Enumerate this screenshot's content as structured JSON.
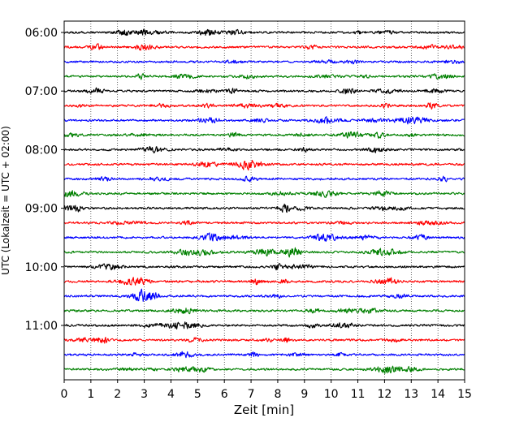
{
  "chart_data": {
    "type": "line",
    "xlabel": "Zeit  [min]",
    "ylabel": "UTC (Lokalzeit = UTC + 02:00)",
    "xlim": [
      0,
      15
    ],
    "x_ticks": [
      "0",
      "1",
      "2",
      "3",
      "4",
      "5",
      "6",
      "7",
      "8",
      "9",
      "10",
      "11",
      "12",
      "13",
      "14",
      "15"
    ],
    "grid": "vertical dotted",
    "row_interval_minutes": 15,
    "row_start": "06:00",
    "row_end": "11:45",
    "y_ticks": [
      {
        "label": "06:00",
        "row": 0
      },
      {
        "label": "07:00",
        "row": 4
      },
      {
        "label": "08:00",
        "row": 8
      },
      {
        "label": "09:00",
        "row": 12
      },
      {
        "label": "10:00",
        "row": 16
      },
      {
        "label": "11:00",
        "row": 20
      }
    ],
    "trace_colors": [
      "#000000",
      "#ff0000",
      "#0000ff",
      "#008000"
    ],
    "traces": [
      {
        "start": "06:00",
        "color": "#000000"
      },
      {
        "start": "06:15",
        "color": "#ff0000"
      },
      {
        "start": "06:30",
        "color": "#0000ff"
      },
      {
        "start": "06:45",
        "color": "#008000"
      },
      {
        "start": "07:00",
        "color": "#000000"
      },
      {
        "start": "07:15",
        "color": "#ff0000"
      },
      {
        "start": "07:30",
        "color": "#0000ff"
      },
      {
        "start": "07:45",
        "color": "#008000"
      },
      {
        "start": "08:00",
        "color": "#000000"
      },
      {
        "start": "08:15",
        "color": "#ff0000"
      },
      {
        "start": "08:30",
        "color": "#0000ff"
      },
      {
        "start": "08:45",
        "color": "#008000"
      },
      {
        "start": "09:00",
        "color": "#000000"
      },
      {
        "start": "09:15",
        "color": "#ff0000"
      },
      {
        "start": "09:30",
        "color": "#0000ff"
      },
      {
        "start": "09:45",
        "color": "#008000"
      },
      {
        "start": "10:00",
        "color": "#000000"
      },
      {
        "start": "10:15",
        "color": "#ff0000"
      },
      {
        "start": "10:30",
        "color": "#0000ff"
      },
      {
        "start": "10:45",
        "color": "#008000"
      },
      {
        "start": "11:00",
        "color": "#000000"
      },
      {
        "start": "11:15",
        "color": "#ff0000"
      },
      {
        "start": "11:30",
        "color": "#0000ff"
      },
      {
        "start": "11:45",
        "color": "#008000"
      }
    ]
  }
}
